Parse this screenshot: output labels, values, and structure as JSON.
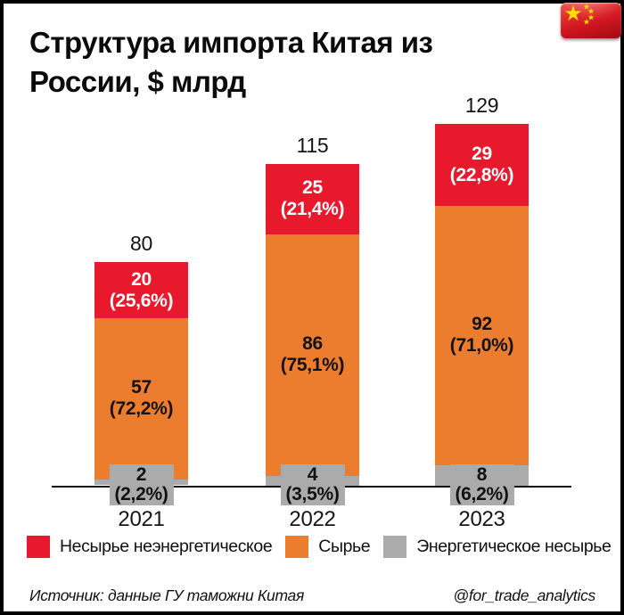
{
  "header": {
    "title": "Структура импорта Китая из России, $ млрд",
    "lines": [
      "Структура импорта Китая из",
      "России, $ млрд"
    ]
  },
  "flag": {
    "icon": "china-flag",
    "big_star": "★",
    "small_star": "★"
  },
  "chart_data": {
    "type": "bar",
    "stacked": true,
    "title": "Структура импорта Китая из России, $ млрд",
    "unit": "$ млрд",
    "categories": [
      "2021",
      "2022",
      "2023"
    ],
    "totals": [
      80,
      115,
      129
    ],
    "series": [
      {
        "name": "Несырье неэнергетическое",
        "color": "#e8192d",
        "text_color": "#ffffff",
        "values": [
          20,
          25,
          29
        ],
        "percents": [
          "(25,6%)",
          "(21,4%)",
          "(22,8%)"
        ]
      },
      {
        "name": "Сырье",
        "color": "#ec7d2e",
        "text_color": "#121212",
        "values": [
          57,
          86,
          92
        ],
        "percents": [
          "(72,2%)",
          "(75,1%)",
          "(71,0%)"
        ]
      },
      {
        "name": "Энергетическое несырье",
        "color": "#ababab",
        "text_color": "#121212",
        "values": [
          2,
          4,
          8
        ],
        "percents": [
          "(2,2%)",
          "(3,5%)",
          "(6,2%)"
        ]
      }
    ],
    "legend_position": "bottom",
    "grid": false,
    "ylim": [
      0,
      140
    ]
  },
  "footer": {
    "source": "Источник: данные ГУ таможни Китая",
    "handle": "@for_trade_analytics"
  }
}
